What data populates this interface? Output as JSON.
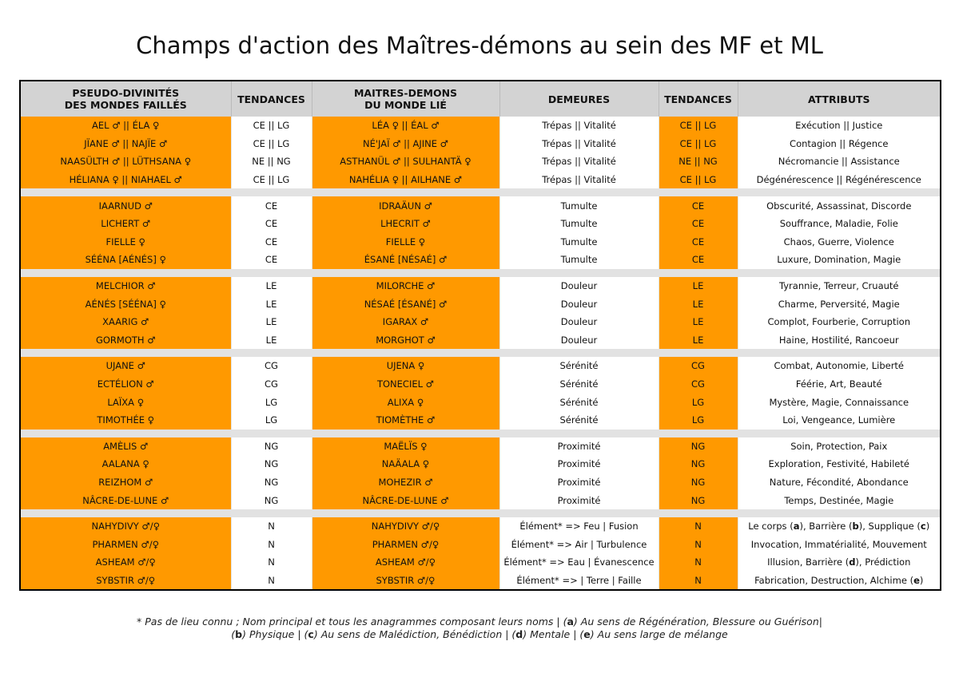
{
  "title": "Champs d'action des Maîtres-démons au sein des MF et ML",
  "headers": {
    "pseudo_1": "PSEUDO-DIVINITÉS",
    "pseudo_2": "DES MONDES FAILLÉS",
    "tendances": "TENDANCES",
    "maitres_1": "MAITRES-DEMONS",
    "maitres_2": "DU MONDE LIÉ",
    "demeures": "DEMEURES",
    "tendances2": "TENDANCES",
    "attributs": "ATTRIBUTS"
  },
  "groups": [
    [
      [
        "AEL ♂ || ÉLA ♀",
        "CE || LG",
        "LÉA ♀ || ÉAL ♂",
        "Trépas || Vitalité",
        "CE  || LG",
        "Exécution || Justice"
      ],
      [
        "JÏANE ♂ || NAJÏE ♂",
        "CE || LG",
        "NÉ'JAÏ ♂ || AJINE ♂",
        "Trépas || Vitalité",
        "CE  || LG",
        "Contagion || Régence"
      ],
      [
        "NAASÜLTH ♂ || LÜTHSANA ♀",
        "NE || NG",
        "ASTHANÜL ♂ || SULHANTÄ ♀",
        "Trépas || Vitalité",
        "NE  || NG",
        "Nécromancie || Assistance"
      ],
      [
        "HÉLIANA ♀ || NIAHAEL ♂",
        "CE || LG",
        "NAHÉLIA ♀ || AILHANE ♂",
        "Trépas || Vitalité",
        "CE  || LG",
        "Dégénérescence || Régénérescence"
      ]
    ],
    [
      [
        "IAARNUD ♂",
        "CE",
        "IDRAÄUN ♂",
        "Tumulte",
        "CE",
        "Obscurité, Assassinat, Discorde"
      ],
      [
        "LICHERT ♂",
        "CE",
        "LHECRIT ♂",
        "Tumulte",
        "CE",
        "Souffrance, Maladie, Folie"
      ],
      [
        "FIELLE ♀",
        "CE",
        "FIELLE ♀",
        "Tumulte",
        "CE",
        "Chaos, Guerre, Violence"
      ],
      [
        "SÉÉNA [AÉNÉS] ♀",
        "CE",
        "ÉSANÉ [NÉSAÉ] ♂",
        "Tumulte",
        "CE",
        "Luxure, Domination, Magie"
      ]
    ],
    [
      [
        "MELCHIOR ♂",
        "LE",
        "MILORCHE ♂",
        "Douleur",
        "LE",
        "Tyrannie, Terreur, Cruauté"
      ],
      [
        "AÉNÉS [SÉÉNA] ♀",
        "LE",
        "NÉSAÉ [ÉSANÉ] ♂",
        "Douleur",
        "LE",
        "Charme, Perversité, Magie"
      ],
      [
        "XAARIG ♂",
        "LE",
        "IGARAX ♂",
        "Douleur",
        "LE",
        "Complot, Fourberie, Corruption"
      ],
      [
        "GORMOTH ♂",
        "LE",
        "MORGHOT ♂",
        "Douleur",
        "LE",
        "Haine, Hostilité, Rancoeur"
      ]
    ],
    [
      [
        "UJANE ♂",
        "CG",
        "UJENA ♀",
        "Sérénité",
        "CG",
        "Combat, Autonomie, Liberté"
      ],
      [
        "ECTÉLION ♂",
        "CG",
        "TONECIEL ♂",
        "Sérénité",
        "CG",
        "Féérie, Art, Beauté"
      ],
      [
        "LAÏXA ♀",
        "LG",
        "ALIXA ♀",
        "Sérénité",
        "LG",
        "Mystère, Magie, Connaissance"
      ],
      [
        "TIMOTHÉE ♀",
        "LG",
        "TIOMÈTHE ♂",
        "Sérénité",
        "LG",
        "Loi, Vengeance, Lumière"
      ]
    ],
    [
      [
        "AMÈLIS ♂",
        "NG",
        "MAËLÏS ♀",
        "Proximité",
        "NG",
        "Soin, Protection, Paix"
      ],
      [
        "AALANA ♀",
        "NG",
        "NAÄALA ♀",
        "Proximité",
        "NG",
        "Exploration, Festivité, Habileté"
      ],
      [
        "REIZHOM ♂",
        "NG",
        "MOHEZIR ♂",
        "Proximité",
        "NG",
        "Nature, Fécondité, Abondance"
      ],
      [
        "NÂCRE-DE-LUNE ♂",
        "NG",
        "NÂCRE-DE-LUNE ♂",
        "Proximité",
        "NG",
        "Temps, Destinée, Magie"
      ]
    ],
    [
      [
        "NAHYDIVY ♂/♀",
        "N",
        "NAHYDIVY ♂/♀",
        "Élément* => Feu | Fusion",
        "N",
        "Le corps (a), Barrière (b), Supplique (c)"
      ],
      [
        "PHARMEN ♂/♀",
        "N",
        "PHARMEN ♂/♀",
        "Élément* => Air | Turbulence",
        "N",
        "Invocation, Immatérialité, Mouvement"
      ],
      [
        "ASHEAM ♂/♀",
        "N",
        "ASHEAM ♂/♀",
        "Élément* => Eau | Évanescence",
        "N",
        "Illusion, Barrière (d), Prédiction"
      ],
      [
        "SYBSTIR ♂/♀",
        "N",
        "SYBSTIR ♂/♀",
        "Élément* => | Terre | Faille",
        "N",
        "Fabrication, Destruction, Alchime (e)"
      ]
    ]
  ],
  "footnote": {
    "line1": "* Pas de lieu connu ; Nom principal et tous les anagrammes composant leurs noms | (a) Au sens de Régénération, Blessure ou Guérison|",
    "line2": "(b) Physique | (c) Au sens de Malédiction, Bénédiction | (d) Mentale | (e) Au sens large de mélange"
  }
}
